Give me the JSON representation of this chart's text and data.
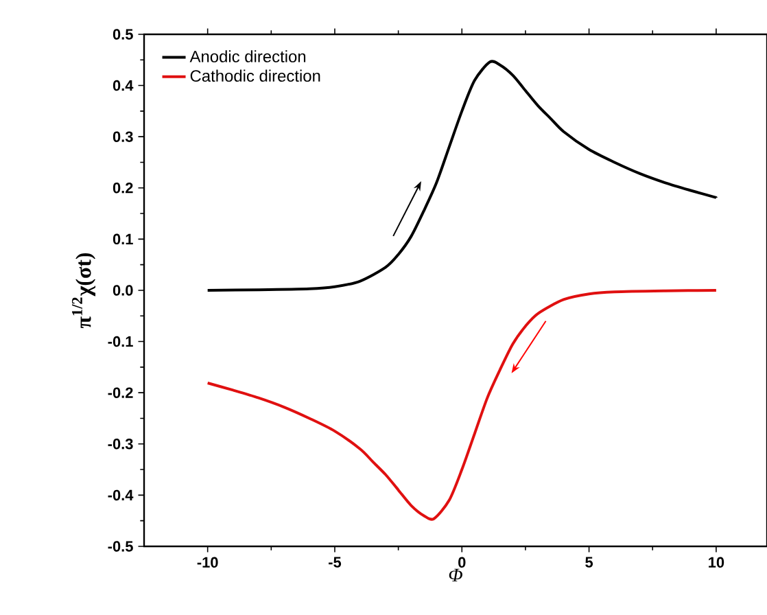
{
  "chart_data": {
    "type": "line",
    "xlabel": "Φ",
    "ylabel": "π$^{1/2}$χ(σt)",
    "xlim": [
      -12.5,
      12
    ],
    "ylim": [
      -0.5,
      0.5
    ],
    "xticks": [
      -10,
      -5,
      0,
      5,
      10
    ],
    "yticks": [
      -0.5,
      -0.4,
      -0.3,
      -0.2,
      -0.1,
      {
        "value": 0,
        "label": "0.0"
      },
      0.1,
      0.2,
      0.3,
      0.4,
      0.5
    ],
    "legend": "top left",
    "grid": false,
    "marker": "none",
    "line_style": "solid",
    "series": [
      {
        "name": "Anodic direction",
        "color": "#000000",
        "x": [
          -10,
          -8,
          -6,
          -5,
          -4,
          -3,
          -2.5,
          -2,
          -1.5,
          -1,
          -0.5,
          0,
          0.5,
          1.1,
          1.5,
          2,
          2.5,
          3,
          3.5,
          4,
          5,
          6,
          7,
          8,
          9,
          10
        ],
        "values": [
          0,
          0.001,
          0.003,
          0.007,
          0.018,
          0.045,
          0.07,
          0.105,
          0.155,
          0.21,
          0.28,
          0.35,
          0.41,
          0.446,
          0.44,
          0.42,
          0.39,
          0.36,
          0.335,
          0.31,
          0.275,
          0.25,
          0.228,
          0.21,
          0.195,
          0.181
        ]
      },
      {
        "name": "Cathodic direction",
        "color": "#e01010",
        "x": [
          -10,
          -9,
          -8,
          -7,
          -6,
          -5,
          -4,
          -3.5,
          -3,
          -2.5,
          -2,
          -1.5,
          -1.1,
          -0.5,
          0,
          0.5,
          1,
          1.5,
          2,
          2.5,
          3,
          4,
          5,
          6,
          8,
          10
        ],
        "values": [
          -0.181,
          -0.195,
          -0.21,
          -0.228,
          -0.25,
          -0.275,
          -0.31,
          -0.335,
          -0.36,
          -0.39,
          -0.42,
          -0.44,
          -0.446,
          -0.41,
          -0.35,
          -0.28,
          -0.21,
          -0.155,
          -0.105,
          -0.07,
          -0.045,
          -0.018,
          -0.007,
          -0.003,
          -0.001,
          0
        ]
      }
    ]
  }
}
